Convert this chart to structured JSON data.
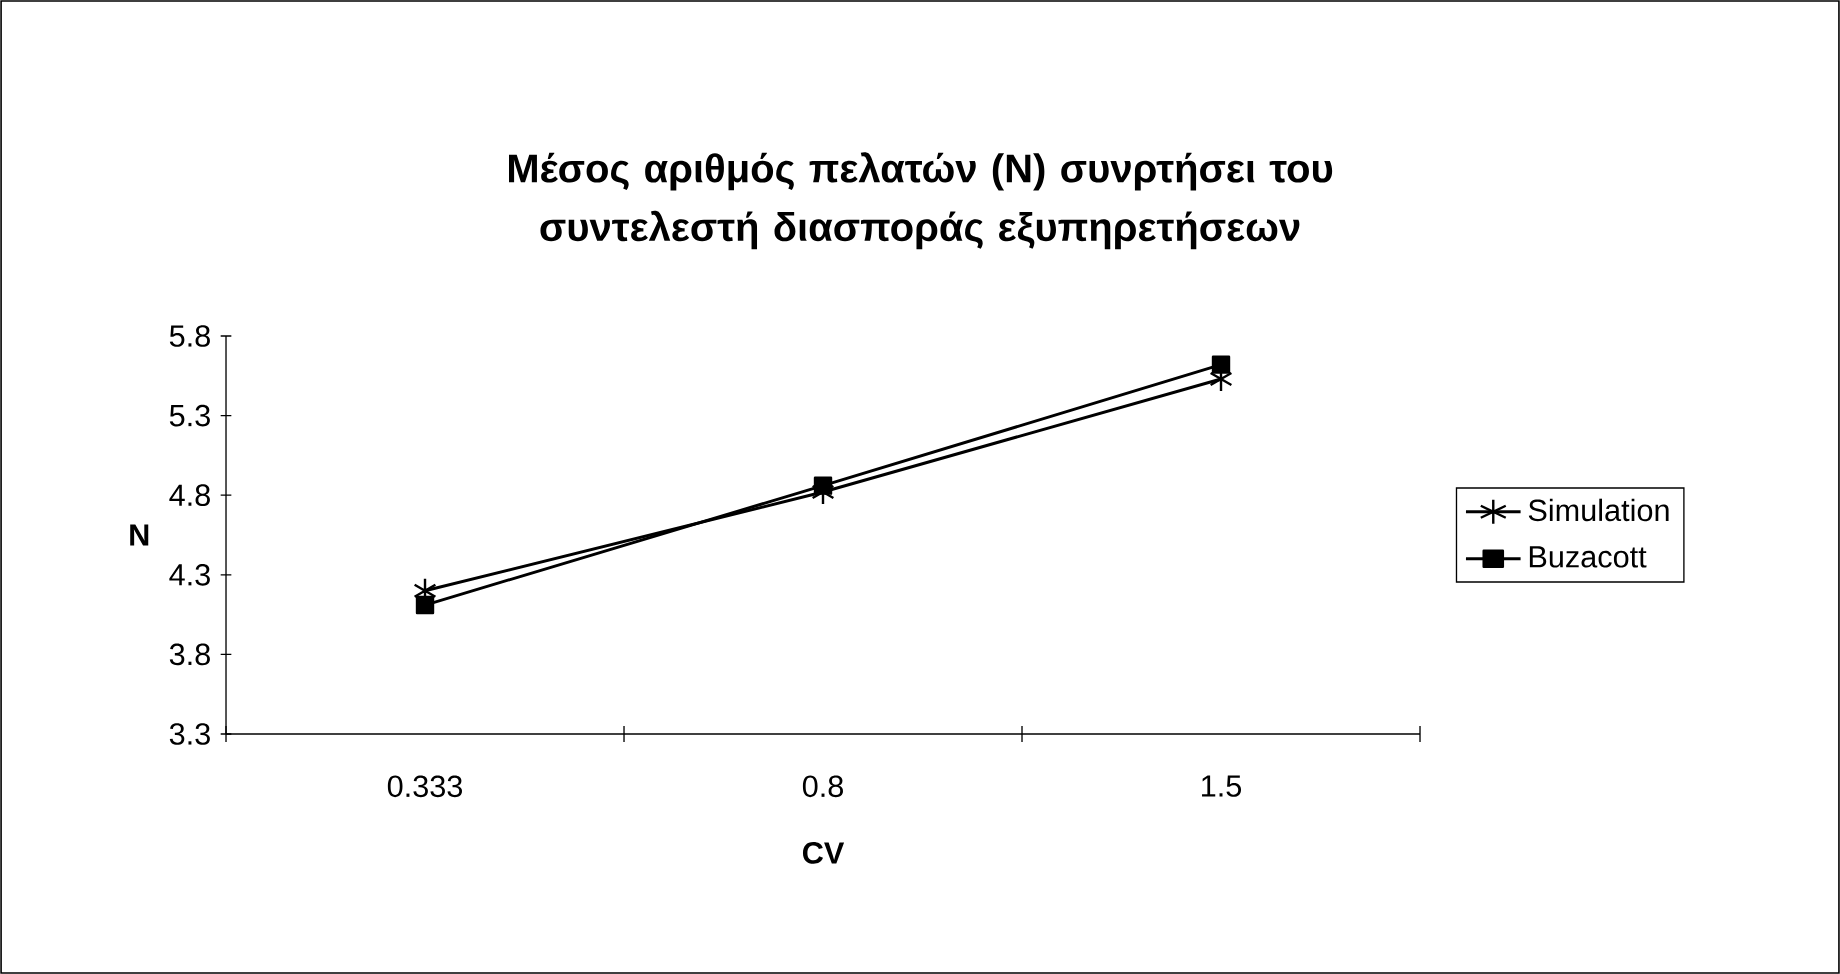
{
  "chart_data": {
    "type": "line",
    "title": "Μέσος αριθμός πελατών (N) συνρτήσει του συντελεστή διασποράς εξυπηρετήσεων",
    "xlabel": "CV",
    "ylabel": "N",
    "categories": [
      "0.333",
      "0.8",
      "1.5"
    ],
    "ylim": [
      3.3,
      5.8
    ],
    "yticks": [
      3.3,
      3.8,
      4.3,
      4.8,
      5.3,
      5.8
    ],
    "grid": false,
    "legend": "right",
    "series": [
      {
        "name": "Simulation",
        "color": "#000000",
        "marker": "cross",
        "values": [
          4.2,
          4.82,
          5.53
        ]
      },
      {
        "name": "Buzacott",
        "color": "#000000",
        "marker": "square",
        "values": [
          4.11,
          4.86,
          5.62
        ]
      }
    ]
  }
}
